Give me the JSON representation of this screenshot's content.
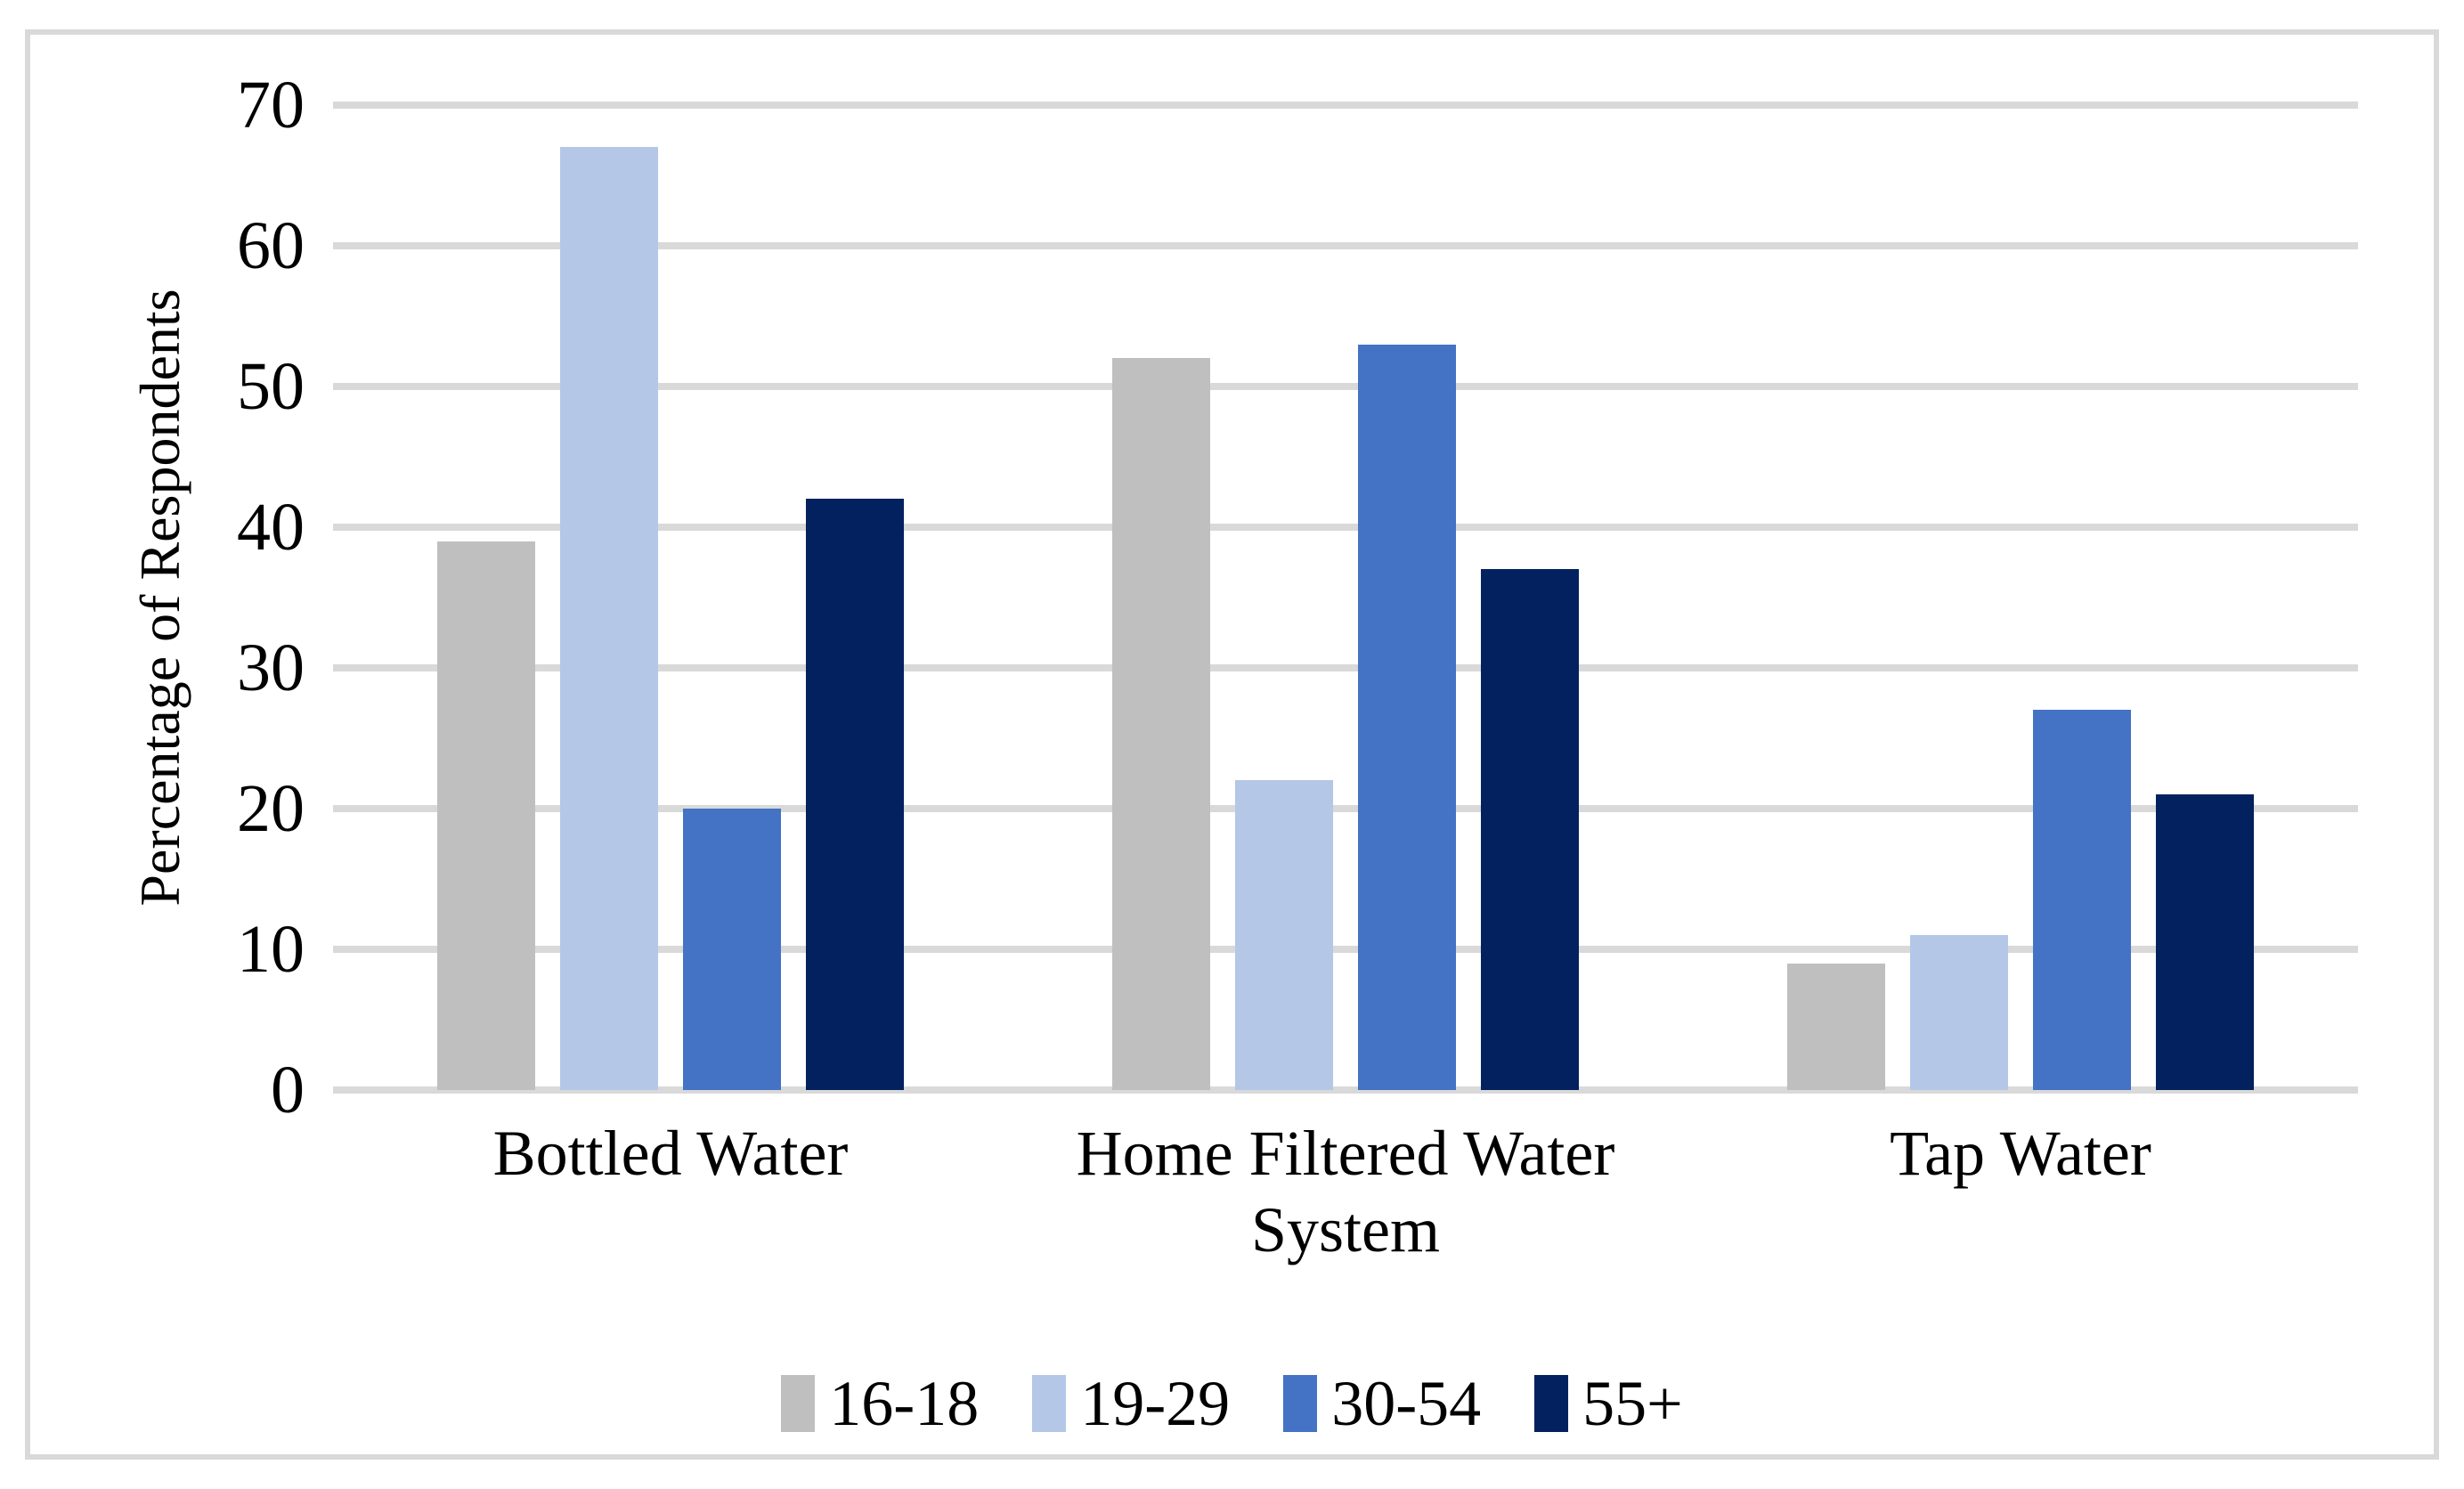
{
  "chart_data": {
    "type": "bar",
    "title": "",
    "categories": [
      "Bottled Water",
      "Home Filtered Water System",
      "Tap Water"
    ],
    "series": [
      {
        "name": "16-18",
        "color": "#bfbfbf",
        "values": [
          39,
          52,
          9
        ]
      },
      {
        "name": "19-29",
        "color": "#b4c7e7",
        "values": [
          67,
          22,
          11
        ]
      },
      {
        "name": "30-54",
        "color": "#4472c4",
        "values": [
          20,
          53,
          27
        ]
      },
      {
        "name": "55+",
        "color": "#02215e",
        "values": [
          42,
          37,
          21
        ]
      }
    ],
    "xlabel": "",
    "ylabel": "Percentage of Respondents",
    "ylim": [
      0,
      70
    ],
    "ytick_interval": 10,
    "yticks": [
      0,
      10,
      20,
      30,
      40,
      50,
      60,
      70
    ],
    "grid": true,
    "legend_position": "bottom"
  },
  "colors": {
    "gridline": "#d9d9d9",
    "frame_border": "#d9d9d9",
    "background": "#ffffff",
    "text": "#000000",
    "series_gray": "#bfbfbf",
    "series_light_blue": "#b4c7e7",
    "series_medium_blue": "#4472c4",
    "series_navy": "#02215e"
  }
}
